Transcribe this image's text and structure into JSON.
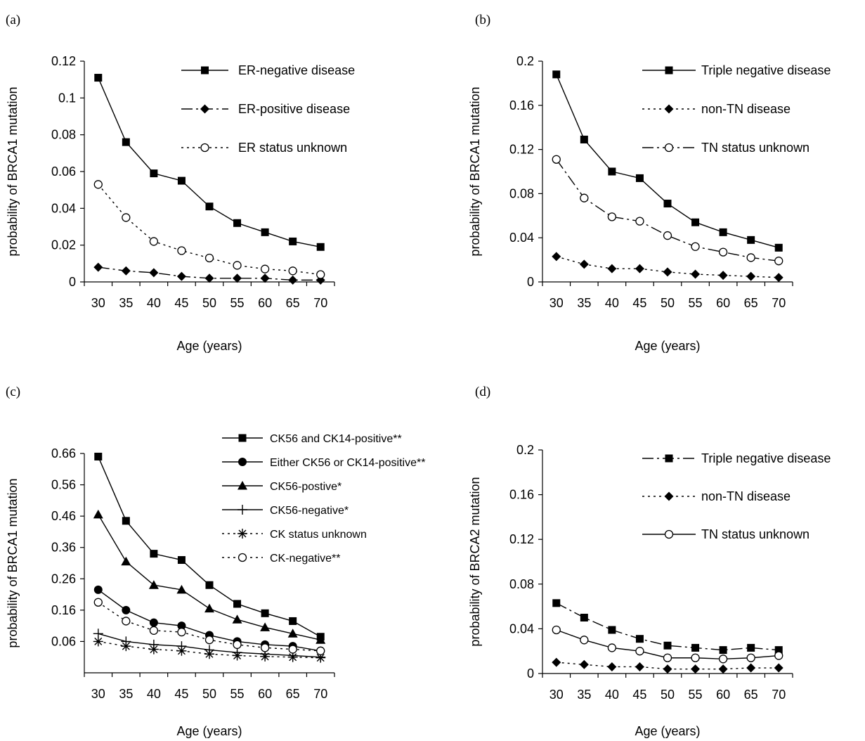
{
  "chart_data": [
    {
      "type": "line",
      "panel_label": "(a)",
      "xlabel": "Age (years)",
      "ylabel": "probability of BRCA1 mutation",
      "x": [
        30,
        35,
        40,
        45,
        50,
        55,
        60,
        65,
        70
      ],
      "ylim": [
        0,
        0.12
      ],
      "yticks": [
        "0",
        "0.02",
        "0.04",
        "0.06",
        "0.08",
        "0.1",
        "0.12"
      ],
      "legend_position": "top-right",
      "grid": false,
      "series": [
        {
          "name": "ER-negative disease",
          "style": "solid",
          "marker": "square-filled",
          "values": [
            0.111,
            0.076,
            0.059,
            0.055,
            0.041,
            0.032,
            0.027,
            0.022,
            0.019
          ]
        },
        {
          "name": "ER-positive disease",
          "style": "dashdot",
          "marker": "diamond-filled",
          "values": [
            0.008,
            0.006,
            0.005,
            0.003,
            0.002,
            0.002,
            0.002,
            0.001,
            0.001
          ]
        },
        {
          "name": "ER status unknown",
          "style": "dotted",
          "marker": "circle-open",
          "values": [
            0.053,
            0.035,
            0.022,
            0.017,
            0.013,
            0.009,
            0.007,
            0.006,
            0.004
          ]
        }
      ]
    },
    {
      "type": "line",
      "panel_label": "(b)",
      "xlabel": "Age (years)",
      "ylabel": "probability of BRCA1 mutation",
      "x": [
        30,
        35,
        40,
        45,
        50,
        55,
        60,
        65,
        70
      ],
      "ylim": [
        0,
        0.2
      ],
      "yticks": [
        "0",
        "0.04",
        "0.08",
        "0.12",
        "0.16",
        "0.2"
      ],
      "legend_position": "top-right",
      "grid": false,
      "series": [
        {
          "name": "Triple negative disease",
          "style": "solid",
          "marker": "square-filled",
          "values": [
            0.188,
            0.129,
            0.1,
            0.094,
            0.071,
            0.054,
            0.045,
            0.038,
            0.031
          ]
        },
        {
          "name": "non-TN disease",
          "style": "dotted",
          "marker": "diamond-filled",
          "values": [
            0.023,
            0.016,
            0.012,
            0.012,
            0.009,
            0.007,
            0.006,
            0.005,
            0.004
          ]
        },
        {
          "name": "TN status unknown",
          "style": "dashdot",
          "marker": "circle-open",
          "values": [
            0.111,
            0.076,
            0.059,
            0.055,
            0.042,
            0.032,
            0.027,
            0.022,
            0.019
          ]
        }
      ]
    },
    {
      "type": "line",
      "panel_label": "(c)",
      "xlabel": "Age (years)",
      "ylabel": "probability of BRCA1 mutation",
      "x": [
        30,
        35,
        40,
        45,
        50,
        55,
        60,
        65,
        70
      ],
      "ylim": [
        -0.04,
        0.66
      ],
      "yticks": [
        "0.06",
        "0.16",
        "0.26",
        "0.36",
        "0.46",
        "0.56",
        "0.66"
      ],
      "legend_position": "top-right",
      "grid": false,
      "series": [
        {
          "name": "CK56 and CK14-positive**",
          "style": "solid",
          "marker": "square-filled",
          "values": [
            0.65,
            0.445,
            0.34,
            0.32,
            0.24,
            0.18,
            0.15,
            0.125,
            0.075
          ]
        },
        {
          "name": "Either CK56 or CK14-positive**",
          "style": "solid",
          "marker": "circle-filled",
          "values": [
            0.225,
            0.16,
            0.12,
            0.11,
            0.08,
            0.06,
            0.05,
            0.045,
            0.03
          ]
        },
        {
          "name": "CK56-postive*",
          "style": "solid",
          "marker": "triangle-filled",
          "values": [
            0.465,
            0.315,
            0.24,
            0.225,
            0.165,
            0.13,
            0.105,
            0.085,
            0.065
          ]
        },
        {
          "name": "CK56-negative*",
          "style": "solid",
          "marker": "plus",
          "values": [
            0.085,
            0.06,
            0.05,
            0.045,
            0.033,
            0.025,
            0.02,
            0.015,
            0.01
          ]
        },
        {
          "name": "CK status unknown",
          "style": "dotted",
          "marker": "asterisk",
          "values": [
            0.06,
            0.045,
            0.035,
            0.03,
            0.02,
            0.015,
            0.012,
            0.01,
            0.008
          ]
        },
        {
          "name": "CK-negative**",
          "style": "dotted",
          "marker": "circle-open",
          "values": [
            0.185,
            0.125,
            0.095,
            0.09,
            0.065,
            0.05,
            0.04,
            0.035,
            0.03
          ]
        }
      ]
    },
    {
      "type": "line",
      "panel_label": "(d)",
      "xlabel": "Age (years)",
      "ylabel": "probability of BRCA2 mutation",
      "x": [
        30,
        35,
        40,
        45,
        50,
        55,
        60,
        65,
        70
      ],
      "ylim": [
        0,
        0.2
      ],
      "yticks": [
        "0",
        "0.04",
        "0.08",
        "0.12",
        "0.16",
        "0.2"
      ],
      "legend_position": "top-right",
      "grid": false,
      "series": [
        {
          "name": "Triple negative disease",
          "style": "dashdot",
          "marker": "square-filled",
          "values": [
            0.063,
            0.05,
            0.039,
            0.031,
            0.025,
            0.023,
            0.021,
            0.023,
            0.021
          ]
        },
        {
          "name": "non-TN disease",
          "style": "dotted",
          "marker": "diamond-filled",
          "values": [
            0.01,
            0.008,
            0.006,
            0.006,
            0.004,
            0.004,
            0.004,
            0.005,
            0.005
          ]
        },
        {
          "name": "TN status unknown",
          "style": "solid",
          "marker": "circle-open",
          "values": [
            0.039,
            0.03,
            0.023,
            0.02,
            0.014,
            0.014,
            0.013,
            0.014,
            0.016
          ]
        }
      ]
    }
  ]
}
